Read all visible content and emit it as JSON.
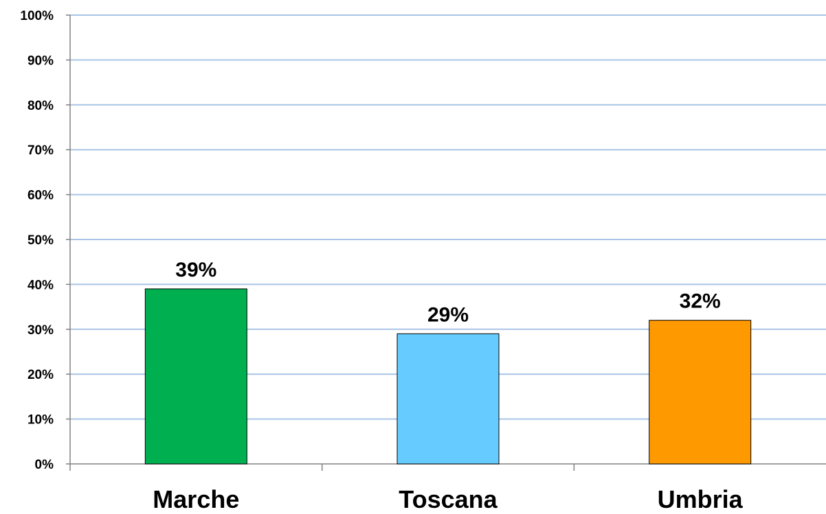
{
  "chart_data": {
    "type": "bar",
    "title": "",
    "xlabel": "",
    "ylabel": "",
    "categories": [
      "Marche",
      "Toscana",
      "Umbria"
    ],
    "values": [
      39,
      29,
      32
    ],
    "value_labels": [
      "39%",
      "29%",
      "32%"
    ],
    "bar_colors": [
      "#00b050",
      "#66ccff",
      "#ff9900"
    ],
    "ylim": [
      0,
      100
    ],
    "yticks": [
      0,
      10,
      20,
      30,
      40,
      50,
      60,
      70,
      80,
      90,
      100
    ],
    "ytick_labels": [
      "0%",
      "10%",
      "20%",
      "30%",
      "40%",
      "50%",
      "60%",
      "70%",
      "80%",
      "90%",
      "100%"
    ],
    "grid": true,
    "grid_color": "#a9c4e6",
    "legend": "none"
  }
}
